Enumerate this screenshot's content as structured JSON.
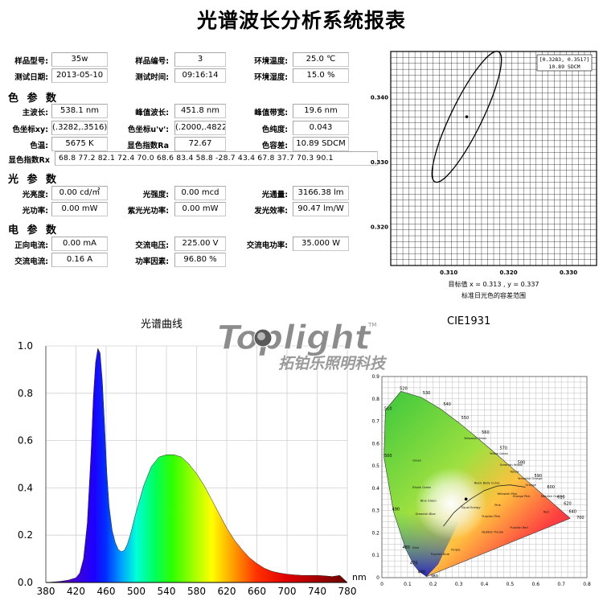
{
  "report_title": "光谱波长分析系统报表",
  "info": {
    "model_label": "样品型号:",
    "model": "35w",
    "serial_label": "样品编号:",
    "serial": "3",
    "temp_label": "环境温度:",
    "temp": "25.0 ℃",
    "date_label": "测试日期:",
    "date": "2013-05-10",
    "time_label": "测试时间:",
    "time": "09:16:14",
    "humidity_label": "环境湿度:",
    "humidity": "15.0 %"
  },
  "color_params": {
    "title": "色 参 数",
    "dominant_label": "主波长:",
    "dominant": "538.1 nm",
    "peak_label": "峰值波长:",
    "peak": "451.8 nm",
    "bandwidth_label": "峰值带宽:",
    "bandwidth": "19.6 nm",
    "xy_label": "色坐标xy:",
    "xy": "(.3282,.3516)",
    "uv_label": "色坐标u'v':",
    "uv": "(.2000,.4822)",
    "purity_label": "色纯度:",
    "purity": "0.043",
    "cct_label": "色温:",
    "cct": "5675 K",
    "ra_label": "显色指数Ra",
    "ra": "72.67",
    "sdcm_label": "色容差:",
    "sdcm": "10.89 SDCM",
    "rx_label": "显色指数Rx",
    "rx": "68.8  77.2  82.1  72.4  70.0  68.6  83.4  58.8  -28.7  43.4  67.8  37.7  70.3  90.1"
  },
  "light_params": {
    "title": "光 参 数",
    "luminance_label": "光亮度:",
    "luminance": "0.00 cd/㎡",
    "intensity_label": "光强度:",
    "intensity": "0.00 mcd",
    "flux_label": "光通量:",
    "flux": "3166.38 lm",
    "power_label": "光功率:",
    "power": "0.00 mW",
    "uv_power_label": "紫光光功率:",
    "uv_power": "0.00 mW",
    "efficacy_label": "发光效率:",
    "efficacy": "90.47 lm/W"
  },
  "elec_params": {
    "title": "电 参 数",
    "fwd_current_label": "正向电流:",
    "fwd_current": "0.00 mA",
    "ac_voltage_label": "交流电压:",
    "ac_voltage": "225.00 V",
    "ac_power_label": "交流电功率:",
    "ac_power": "35.000 W",
    "ac_current_label": "交流电流:",
    "ac_current": "0.16 A",
    "pf_label": "功率因素:",
    "pf": "96.80 %"
  },
  "logo": {
    "brand": "Toplight",
    "tm": "TM",
    "cn": "拓铂乐照明科技"
  },
  "chart_data": [
    {
      "type": "scatter",
      "name": "sdcm_ellipse",
      "legend_text": "[0.3283, 0.3517]",
      "legend_sdcm": "10.89 SDCM",
      "x_ticks": [
        "0.310",
        "0.320",
        "0.330"
      ],
      "y_ticks": [
        "0.340",
        "0.330",
        "0.320"
      ],
      "xlim": [
        0.3003,
        0.3347
      ],
      "ylim": [
        0.314,
        0.3471
      ],
      "center": [
        0.313,
        0.337
      ],
      "ellipse_rx": 0.0026,
      "ellipse_ry": 0.0112,
      "ellipse_rotation_deg": 26,
      "caption_target": "目标值   x = 0.313 , y = 0.337",
      "caption_range": "标准日光色的容差范围",
      "grid": true
    },
    {
      "type": "line",
      "name": "spectrum",
      "title": "光谱曲线",
      "xlabel": "nm",
      "x_ticks": [
        "380",
        "420",
        "460",
        "500",
        "540",
        "580",
        "620",
        "660",
        "700",
        "740",
        "780"
      ],
      "y_ticks": [
        "0.0",
        "0.2",
        "0.4",
        "0.6",
        "0.8",
        "1.0"
      ],
      "xlim": [
        380,
        780
      ],
      "ylim": [
        0,
        1.0
      ],
      "x": [
        380,
        390,
        400,
        410,
        420,
        425,
        430,
        435,
        440,
        443,
        446,
        449,
        452,
        455,
        458,
        461,
        464,
        468,
        472,
        476,
        480,
        484,
        488,
        492,
        496,
        500,
        510,
        520,
        530,
        540,
        550,
        560,
        570,
        580,
        590,
        600,
        610,
        620,
        630,
        640,
        650,
        660,
        670,
        680,
        690,
        700,
        710,
        720,
        730,
        740,
        750,
        760,
        770,
        780
      ],
      "y": [
        0.0,
        0.002,
        0.005,
        0.01,
        0.02,
        0.04,
        0.1,
        0.25,
        0.55,
        0.78,
        0.93,
        0.99,
        0.97,
        0.85,
        0.66,
        0.46,
        0.32,
        0.22,
        0.17,
        0.14,
        0.13,
        0.135,
        0.16,
        0.2,
        0.25,
        0.3,
        0.41,
        0.49,
        0.53,
        0.54,
        0.54,
        0.53,
        0.5,
        0.46,
        0.41,
        0.35,
        0.29,
        0.23,
        0.18,
        0.14,
        0.105,
        0.08,
        0.06,
        0.047,
        0.04,
        0.035,
        0.032,
        0.03,
        0.03,
        0.03,
        0.028,
        0.025,
        0.03,
        0.0
      ],
      "grid": true
    },
    {
      "type": "scatter",
      "name": "cie1931",
      "title": "CIE1931",
      "x_ticks": [
        "0",
        "0.1",
        "0.2",
        "0.3",
        "0.4",
        "0.5",
        "0.6",
        "0.7",
        "0.8"
      ],
      "y_ticks": [
        "0.9",
        "0.8",
        "0.7",
        "0.6",
        "0.5",
        "0.4",
        "0.3",
        "0.2",
        "0.1",
        "0"
      ],
      "xlim": [
        0,
        0.8
      ],
      "ylim": [
        0,
        0.9
      ],
      "point": [
        0.3282,
        0.3516
      ],
      "wavelength_labels": [
        "380",
        "460",
        "470",
        "480",
        "490",
        "500",
        "510",
        "520",
        "530",
        "540",
        "550",
        "560",
        "570",
        "580",
        "590",
        "600",
        "610",
        "620",
        "640",
        "700"
      ],
      "region_labels": [
        "Green",
        "Yellowish Green",
        "Yellow Green",
        "Greenish Yellow",
        "Yellow",
        "Yellowish Orange",
        "Orange",
        "Reddish Orange",
        "Red",
        "Bluish Green",
        "Blue Green",
        "Greenish Blue",
        "Blue",
        "Purplish Blue",
        "Purple",
        "Reddish Purple",
        "Purplish Red",
        "Pink",
        "Purplish Pink",
        "Orange Pink",
        "Yellowish Pink",
        "Equal Energy",
        "Black Body Curve"
      ],
      "grid": true
    }
  ]
}
